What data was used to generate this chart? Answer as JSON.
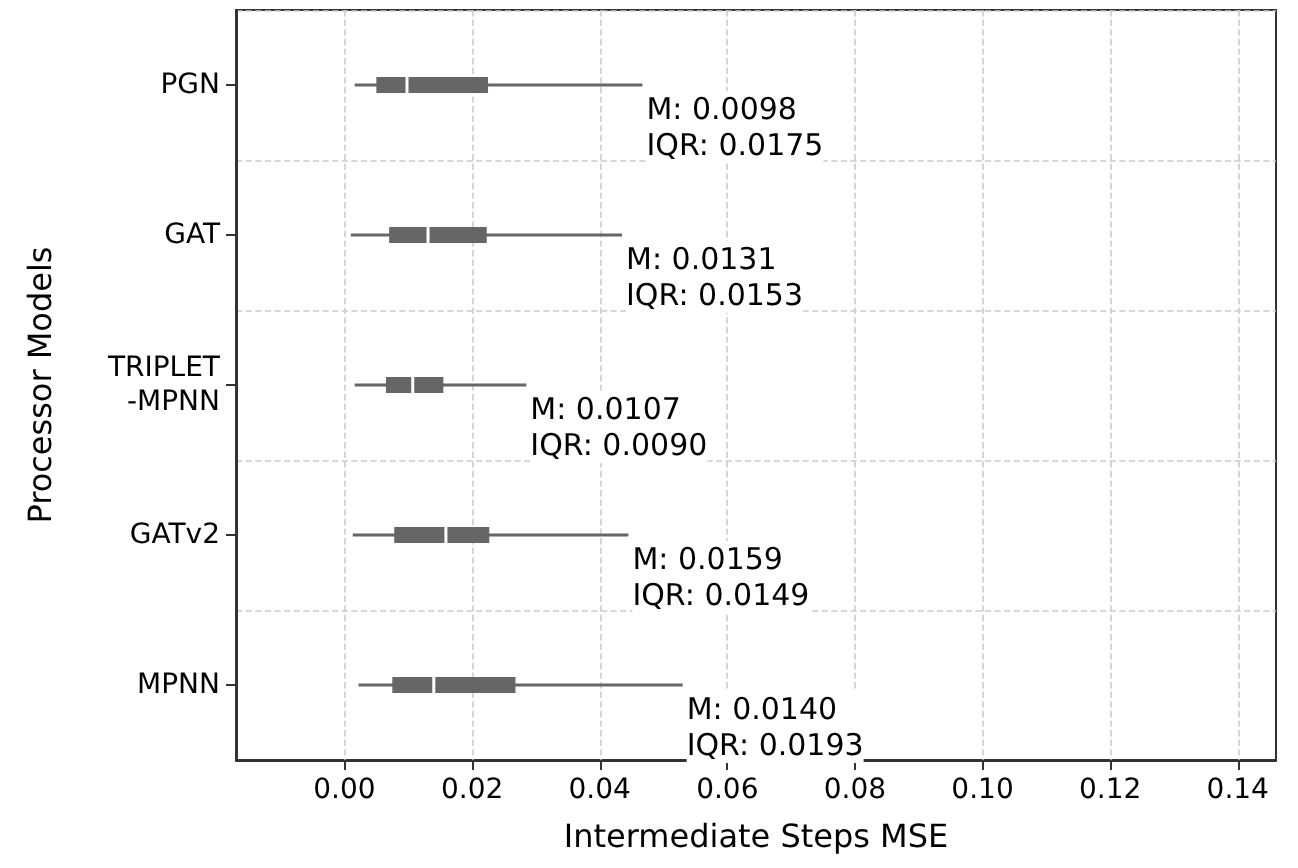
{
  "chart_data": {
    "type": "box",
    "orientation": "horizontal",
    "xlabel": "Intermediate Steps MSE",
    "ylabel": "Processor Models",
    "categories": [
      "PGN",
      "GAT",
      "TRIPLET\n-MPNN",
      "GATv2",
      "MPNN"
    ],
    "boxes": [
      {
        "low": 0.0016,
        "q1": 0.005,
        "median": 0.0098,
        "q3": 0.0225,
        "high": 0.0467
      },
      {
        "low": 0.001,
        "q1": 0.007,
        "median": 0.0131,
        "q3": 0.0223,
        "high": 0.0435
      },
      {
        "low": 0.0016,
        "q1": 0.0065,
        "median": 0.0107,
        "q3": 0.0155,
        "high": 0.0285
      },
      {
        "low": 0.0013,
        "q1": 0.0078,
        "median": 0.0159,
        "q3": 0.0227,
        "high": 0.0445
      },
      {
        "low": 0.0022,
        "q1": 0.0075,
        "median": 0.014,
        "q3": 0.0268,
        "high": 0.053
      }
    ],
    "color": "#666666",
    "xlim": [
      -0.017,
      0.146
    ],
    "xticks": [
      {
        "value": 0,
        "label": "0.00"
      },
      {
        "value": 0.02,
        "label": "0.02"
      },
      {
        "value": 0.04,
        "label": "0.04"
      },
      {
        "value": 0.06,
        "label": "0.06"
      },
      {
        "value": 0.08,
        "label": "0.08"
      },
      {
        "value": 0.1,
        "label": "0.10"
      },
      {
        "value": 0.12,
        "label": "0.12"
      },
      {
        "value": 0.14,
        "label": "0.14"
      }
    ],
    "annotations": [
      "M: 0.0098\nIQR: 0.0175",
      "M: 0.0131\nIQR: 0.0153",
      "M: 0.0107\nIQR: 0.0090",
      "M: 0.0159\nIQR: 0.0149",
      "M: 0.0140\nIQR: 0.0193"
    ],
    "grid": true
  }
}
